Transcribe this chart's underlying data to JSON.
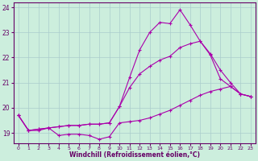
{
  "xlabel": "Windchill (Refroidissement éolien,°C)",
  "bg_color": "#cceedd",
  "grid_color": "#aacccc",
  "line_color": "#aa00aa",
  "xlim": [
    -0.5,
    23.5
  ],
  "ylim": [
    18.6,
    24.2
  ],
  "yticks": [
    19,
    20,
    21,
    22,
    23,
    24
  ],
  "xticks": [
    0,
    1,
    2,
    3,
    4,
    5,
    6,
    7,
    8,
    9,
    10,
    11,
    12,
    13,
    14,
    15,
    16,
    17,
    18,
    19,
    20,
    21,
    22,
    23
  ],
  "series": [
    [
      19.7,
      19.1,
      19.1,
      19.2,
      18.9,
      18.95,
      18.95,
      18.9,
      18.75,
      18.85,
      19.4,
      19.45,
      19.5,
      19.6,
      19.75,
      19.9,
      20.1,
      20.3,
      20.5,
      20.65,
      20.75,
      20.85,
      20.55,
      20.45
    ],
    [
      19.7,
      19.1,
      19.15,
      19.2,
      19.25,
      19.3,
      19.3,
      19.35,
      19.35,
      19.4,
      20.05,
      21.2,
      22.3,
      23.0,
      23.4,
      23.35,
      23.9,
      23.3,
      22.65,
      22.1,
      21.15,
      20.85,
      20.55,
      20.45
    ],
    [
      19.7,
      19.1,
      19.15,
      19.2,
      19.25,
      19.3,
      19.3,
      19.35,
      19.35,
      19.4,
      20.05,
      20.8,
      21.35,
      21.65,
      21.9,
      22.05,
      22.4,
      22.55,
      22.65,
      22.15,
      21.5,
      21.0,
      20.55,
      20.45
    ]
  ]
}
